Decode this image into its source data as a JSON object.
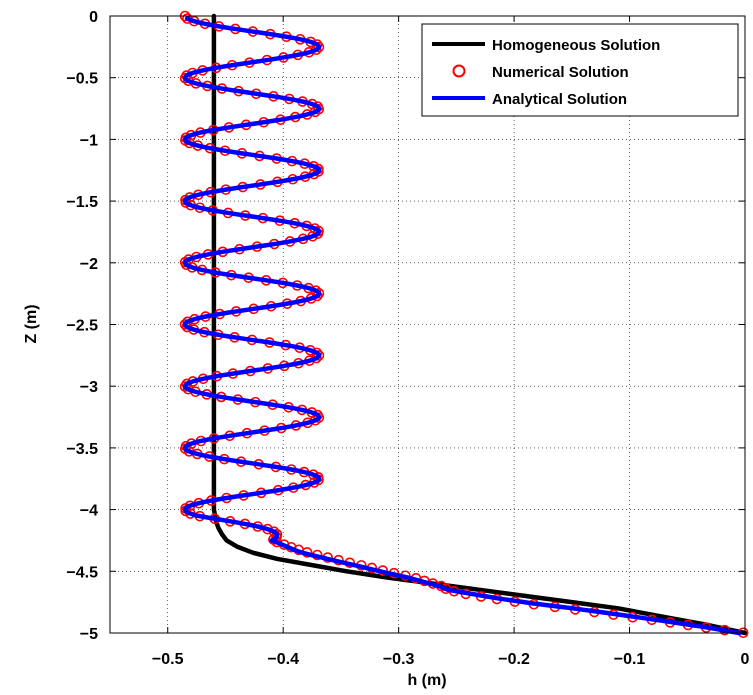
{
  "chart_data": {
    "type": "line",
    "title": "",
    "xlabel": "h (m)",
    "ylabel": "Z (m)",
    "xlim": [
      -0.55,
      0
    ],
    "ylim": [
      -5,
      0
    ],
    "xticks": [
      -0.5,
      -0.4,
      -0.3,
      -0.2,
      -0.1,
      0
    ],
    "xtick_labels": [
      "−0.5",
      "−0.4",
      "−0.3",
      "−0.2",
      "−0.1",
      "0"
    ],
    "yticks": [
      0,
      -0.5,
      -1,
      -1.5,
      -2,
      -2.5,
      -3,
      -3.5,
      -4,
      -4.5,
      -5
    ],
    "ytick_labels": [
      "0",
      "−0.5",
      "−1",
      "−1.5",
      "−2",
      "−2.5",
      "−3",
      "−3.5",
      "−4",
      "−4.5",
      "−5"
    ],
    "grid": true,
    "legend_position": "top-right",
    "series": [
      {
        "name": "Homogeneous Solution",
        "style": "line",
        "color": "#000000",
        "x": [
          -0.46,
          -0.46,
          -0.46,
          -0.46,
          -0.46,
          -0.46,
          -0.46,
          -0.46,
          -0.46,
          -0.46,
          -0.46,
          -0.46,
          -0.46,
          -0.46,
          -0.46,
          -0.459,
          -0.458,
          -0.456,
          -0.453,
          -0.449,
          -0.44,
          -0.426,
          -0.405,
          -0.375,
          -0.345,
          -0.31,
          -0.27,
          -0.23,
          -0.19,
          -0.15,
          -0.11,
          -0.07,
          -0.035,
          0
        ],
        "y": [
          0,
          -0.5,
          -1,
          -1.5,
          -2,
          -2.5,
          -3,
          -3.5,
          -3.6,
          -3.7,
          -3.8,
          -3.85,
          -3.9,
          -3.95,
          -4.0,
          -4.05,
          -4.1,
          -4.15,
          -4.2,
          -4.25,
          -4.3,
          -4.35,
          -4.4,
          -4.45,
          -4.5,
          -4.55,
          -4.6,
          -4.65,
          -4.7,
          -4.75,
          -4.8,
          -4.87,
          -4.93,
          -5.0
        ]
      },
      {
        "name": "Numerical Solution",
        "style": "marker",
        "color": "#ff0000",
        "generator": "oscillation",
        "env": {
          "z": [
            0,
            -0.25,
            -0.5,
            -0.75,
            -1,
            -1.25,
            -1.5,
            -1.75,
            -2,
            -2.25,
            -2.5,
            -2.75,
            -3,
            -3.25,
            -3.5,
            -3.75,
            -4.05,
            -4.25,
            -4.35,
            -4.45,
            -4.55,
            -4.62,
            -4.65,
            -4.68,
            -4.72,
            -4.76,
            -4.8,
            -4.85,
            -4.9,
            -4.95,
            -5.0
          ],
          "center": [
            -0.427,
            -0.427,
            -0.427,
            -0.427,
            -0.427,
            -0.427,
            -0.427,
            -0.427,
            -0.427,
            -0.427,
            -0.427,
            -0.427,
            -0.427,
            -0.427,
            -0.427,
            -0.427,
            -0.427,
            -0.43,
            -0.38,
            -0.33,
            -0.285,
            -0.263,
            -0.258,
            -0.245,
            -0.22,
            -0.19,
            -0.155,
            -0.115,
            -0.075,
            -0.038,
            0.0
          ],
          "amp": [
            0.058,
            0.058,
            0.058,
            0.058,
            0.058,
            0.058,
            0.058,
            0.058,
            0.058,
            0.058,
            0.058,
            0.058,
            0.058,
            0.058,
            0.058,
            0.058,
            0.058,
            0.02,
            0.006,
            0.004,
            0.003,
            0.002,
            0.002,
            0.002,
            0.0015,
            0.001,
            0.001,
            0.001,
            0.0005,
            0.0002,
            0
          ]
        },
        "phase_start": -1.5708,
        "period": 0.5,
        "z_start": 0,
        "z_end": -5,
        "z_step": 0.021
      },
      {
        "name": "Analytical Solution",
        "style": "line",
        "color": "#0000ff",
        "generator": "oscillation",
        "env": {
          "z": [
            0,
            -0.25,
            -0.5,
            -0.75,
            -1,
            -1.25,
            -1.5,
            -1.75,
            -2,
            -2.25,
            -2.5,
            -2.75,
            -3,
            -3.25,
            -3.5,
            -3.75,
            -4.05,
            -4.25,
            -4.35,
            -4.45,
            -4.55,
            -4.62,
            -4.65,
            -4.68,
            -4.72,
            -4.76,
            -4.8,
            -4.85,
            -4.9,
            -4.95,
            -5.0
          ],
          "center": [
            -0.427,
            -0.427,
            -0.427,
            -0.427,
            -0.427,
            -0.427,
            -0.427,
            -0.427,
            -0.427,
            -0.427,
            -0.427,
            -0.427,
            -0.427,
            -0.427,
            -0.427,
            -0.427,
            -0.427,
            -0.43,
            -0.385,
            -0.335,
            -0.29,
            -0.265,
            -0.258,
            -0.24,
            -0.215,
            -0.185,
            -0.15,
            -0.11,
            -0.072,
            -0.036,
            -0.005
          ],
          "amp": [
            0.058,
            0.058,
            0.058,
            0.058,
            0.058,
            0.058,
            0.058,
            0.058,
            0.058,
            0.058,
            0.058,
            0.058,
            0.058,
            0.058,
            0.058,
            0.058,
            0.058,
            0.02,
            0.006,
            0.004,
            0.003,
            0.002,
            0.002,
            0.002,
            0.0015,
            0.001,
            0.001,
            0.001,
            0.0005,
            0.0002,
            0
          ]
        },
        "phase_start": -1.5708,
        "period": 0.5,
        "z_start": -0.02,
        "z_end": -5,
        "z_step": 0.005
      }
    ]
  }
}
